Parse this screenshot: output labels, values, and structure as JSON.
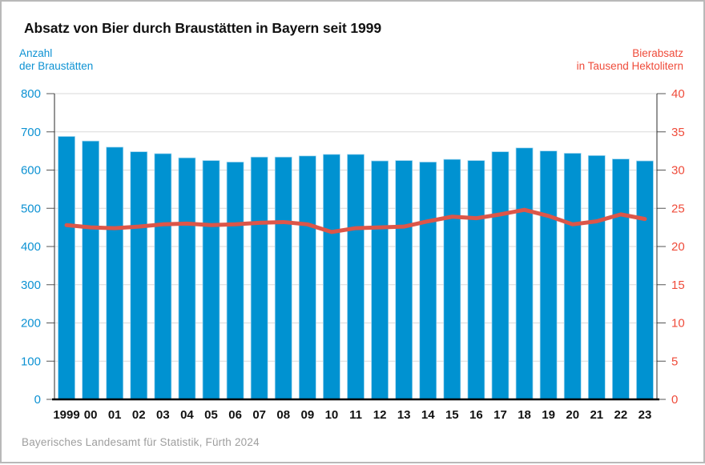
{
  "header": {
    "title": "Absatz von Bier durch Braustätten in Bayern seit 1999"
  },
  "axes": {
    "left_label_line1": "Anzahl",
    "left_label_line2": "der Braustätten",
    "left_color": "#0d92d3",
    "right_label_line1": "Bierabsatz",
    "right_label_line2": "in Tausend Hektolitern",
    "right_color": "#ef4b3a"
  },
  "footer": {
    "source": "Bayerisches Landesamt für Statistik, Fürth 2024"
  },
  "chart_data": {
    "type": "bar",
    "title": "Absatz von Bier durch Braustätten in Bayern seit 1999",
    "categories": [
      "1999",
      "00",
      "01",
      "02",
      "03",
      "04",
      "05",
      "06",
      "07",
      "08",
      "09",
      "10",
      "11",
      "12",
      "13",
      "14",
      "15",
      "16",
      "17",
      "18",
      "19",
      "20",
      "21",
      "22",
      "23"
    ],
    "series": [
      {
        "name": "Anzahl der Braustätten",
        "type": "bar",
        "axis": "left",
        "color": "#0092d1",
        "edge_color": "#a5d7ef",
        "values": [
          688,
          676,
          660,
          648,
          643,
          632,
          625,
          621,
          634,
          634,
          637,
          641,
          641,
          624,
          625,
          621,
          628,
          625,
          648,
          658,
          650,
          644,
          638,
          629,
          624
        ]
      },
      {
        "name": "Bierabsatz in Tausend Hektolitern",
        "type": "line",
        "axis": "right",
        "color": "#dc5649",
        "values": [
          22.8,
          22.5,
          22.4,
          22.6,
          22.9,
          23.0,
          22.8,
          22.9,
          23.1,
          23.2,
          22.9,
          21.9,
          22.4,
          22.5,
          22.6,
          23.3,
          23.9,
          23.7,
          24.2,
          24.8,
          24.0,
          22.9,
          23.3,
          24.2,
          23.6
        ]
      }
    ],
    "left_axis": {
      "min": 0,
      "max": 800,
      "step": 100,
      "tick_labels": [
        "0",
        "100",
        "200",
        "300",
        "400",
        "500",
        "600",
        "700",
        "800"
      ]
    },
    "right_axis": {
      "min": 0,
      "max": 40,
      "step": 5,
      "tick_labels": [
        "0",
        "5",
        "10",
        "15",
        "20",
        "25",
        "30",
        "35",
        "40"
      ]
    },
    "grid": true,
    "legend": "none"
  }
}
